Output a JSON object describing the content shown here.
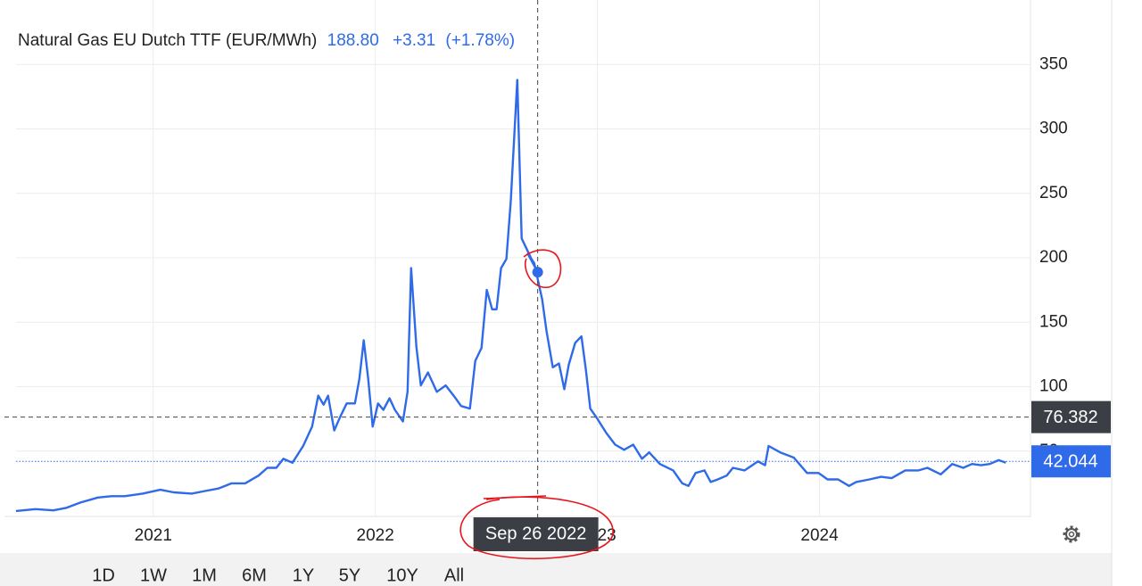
{
  "chart_data": {
    "type": "line",
    "title": "Natural Gas EU Dutch TTF (EUR/MWh)",
    "hover_price": "188.80",
    "hover_change": "+3.31",
    "hover_change_pct": "(+1.78%)",
    "crosshair_label": "Sep 26 2022",
    "crosshair_value": 76.382,
    "last_value": 42.044,
    "hover_index": 59,
    "x": [
      2020.382,
      2020.47,
      2020.55,
      2020.61,
      2020.671,
      2020.751,
      2020.811,
      2020.871,
      2020.952,
      2021.032,
      2021.092,
      2021.173,
      2021.233,
      2021.293,
      2021.353,
      2021.414,
      2021.474,
      2021.514,
      2021.554,
      2021.586,
      2021.627,
      2021.675,
      2021.715,
      2021.743,
      2021.767,
      2021.787,
      2021.815,
      2021.843,
      2021.871,
      2021.908,
      2021.928,
      2021.948,
      2021.968,
      2021.988,
      2022.012,
      2022.036,
      2022.064,
      2022.088,
      2022.124,
      2022.145,
      2022.161,
      2022.185,
      2022.205,
      2022.237,
      2022.277,
      2022.317,
      2022.357,
      2022.386,
      2022.426,
      2022.45,
      2022.478,
      2022.502,
      2022.526,
      2022.546,
      2022.566,
      2022.59,
      2022.61,
      2022.639,
      2022.659,
      2022.731,
      2022.687,
      2022.715,
      2022.751,
      2022.771,
      2022.799,
      2022.827,
      2022.851,
      2022.871,
      2022.9,
      2022.928,
      2022.948,
      2022.968,
      2023.0,
      2023.04,
      2023.08,
      2023.12,
      2023.161,
      2023.201,
      2023.233,
      2023.281,
      2023.341,
      2023.382,
      2023.41,
      2023.442,
      2023.482,
      2023.51,
      2023.542,
      2023.582,
      2023.61,
      2023.663,
      2023.723,
      2023.755,
      2023.771,
      2023.823,
      2023.884,
      2023.944,
      2023.996,
      2024.036,
      2024.084,
      2024.133,
      2024.165,
      2024.225,
      2024.277,
      2024.325,
      2024.386,
      2024.446,
      2024.486,
      2024.546,
      2024.598,
      2024.647,
      2024.687,
      2024.727,
      2024.767,
      2024.807,
      2024.839
    ],
    "series": [
      {
        "name": "Natural Gas EU Dutch TTF",
        "color": "#2f6ae8",
        "values": [
          3.5,
          5,
          4,
          6,
          10,
          14,
          15,
          15,
          17,
          20,
          18,
          17,
          19,
          21,
          25,
          25,
          31,
          37,
          37,
          44,
          41,
          54,
          69,
          93,
          86,
          93,
          66,
          77,
          87,
          87,
          106,
          136,
          106,
          69,
          87,
          82,
          91,
          82,
          73,
          96,
          192,
          131,
          101,
          111,
          96,
          101,
          92,
          85,
          83,
          120,
          130,
          175,
          160,
          160,
          192,
          199,
          244,
          338,
          215,
          188.8,
          203,
          196,
          168,
          143,
          115,
          118,
          98,
          117,
          134,
          139,
          113,
          83,
          75,
          64,
          55,
          51,
          55,
          44,
          49,
          40,
          35,
          25,
          23,
          33,
          35,
          26,
          28,
          31,
          37,
          35,
          42,
          39,
          54,
          49,
          45,
          33,
          33,
          28,
          28,
          23,
          26,
          28,
          30,
          29,
          35,
          35,
          37,
          32,
          40,
          37,
          40,
          39,
          40,
          43,
          41
        ]
      }
    ],
    "xlim": [
      2020.33,
      2024.95
    ],
    "xticks": [
      2021,
      2022,
      2023,
      2024
    ],
    "ylim": [
      0,
      400
    ],
    "yticks": [
      50,
      100,
      150,
      200,
      250,
      300,
      350
    ],
    "grid": true,
    "ranges": [
      "1D",
      "1W",
      "1M",
      "6M",
      "1Y",
      "5Y",
      "10Y",
      "All"
    ],
    "active_range": 5
  }
}
